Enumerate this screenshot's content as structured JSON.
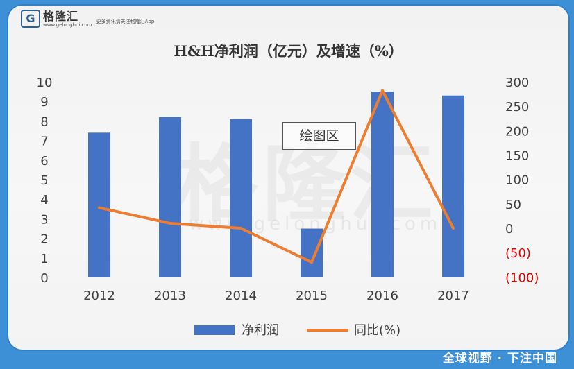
{
  "logo": {
    "mark": "G",
    "name": "格隆汇",
    "url": "www.gelonghui.com",
    "tagline": "更多资讯请关注格隆汇App"
  },
  "watermark": {
    "text": "格隆汇",
    "url": "www.gelonghui.com"
  },
  "plot_area_label": "绘图区",
  "footer": "全球视野 · 下注中国",
  "colors": {
    "bar": "#4472c4",
    "line": "#ed7d31",
    "negative_tick": "#e00000",
    "frame": "#2f7fcb"
  },
  "chart_data": {
    "type": "bar",
    "title": "H&H净利润（亿元）及增速（%）",
    "categories": [
      "2012",
      "2013",
      "2014",
      "2015",
      "2016",
      "2017"
    ],
    "series": [
      {
        "name": "净利润",
        "type": "bar",
        "axis": "left",
        "values": [
          7.4,
          8.2,
          8.1,
          2.5,
          9.5,
          9.3
        ]
      },
      {
        "name": "同比(%)",
        "type": "line",
        "axis": "right",
        "values": [
          42,
          10,
          0,
          -70,
          282,
          0
        ]
      }
    ],
    "y_left": {
      "min": 0,
      "max": 10,
      "ticks": [
        "0",
        "1",
        "2",
        "3",
        "4",
        "5",
        "6",
        "7",
        "8",
        "9",
        "10"
      ]
    },
    "y_right": {
      "min": -100,
      "max": 300,
      "ticks": [
        "(100)",
        "(50)",
        "0",
        "50",
        "100",
        "150",
        "200",
        "250",
        "300"
      ]
    },
    "grid": false,
    "legend": "bottom"
  }
}
